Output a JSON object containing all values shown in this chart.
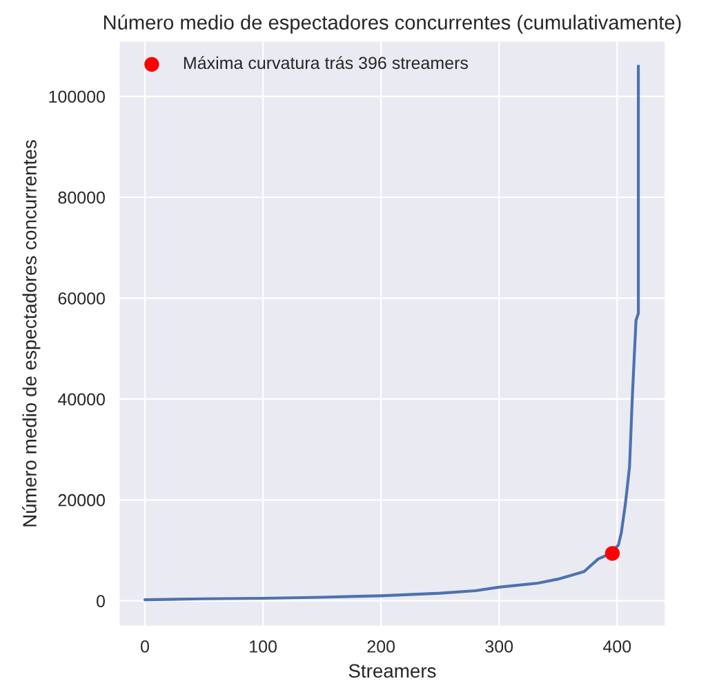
{
  "chart_data": {
    "type": "line",
    "title": "Número medio de espectadores concurrentes (cumulativamente)",
    "xlabel": "Streamers",
    "ylabel": "Número medio de espectadores concurrentes",
    "series": [
      {
        "color": "#4c72b0",
        "x": [
          0,
          50,
          100,
          150,
          200,
          250,
          280,
          300,
          333,
          350,
          372,
          384,
          391,
          401,
          403.5,
          407,
          410.5,
          413,
          416,
          418,
          418
        ],
        "values": [
          200,
          400,
          500,
          700,
          1000,
          1500,
          2000,
          2700,
          3500,
          4300,
          5800,
          8300,
          9000,
          11000,
          13400,
          19200,
          26500,
          41000,
          55600,
          57000,
          106000
        ]
      },
      {
        "type": "scatter",
        "name": "Máxima curvatura trás 396 streamers",
        "color": "#ff0000",
        "x": [
          396
        ],
        "values": [
          9400
        ]
      }
    ],
    "xlim": [
      -22,
      441
    ],
    "ylim": [
      -5100,
      111000
    ],
    "xticks": [
      0,
      100,
      200,
      300,
      400
    ],
    "yticks": [
      0,
      20000,
      40000,
      60000,
      80000,
      100000
    ],
    "grid": true,
    "legend": "top left"
  }
}
